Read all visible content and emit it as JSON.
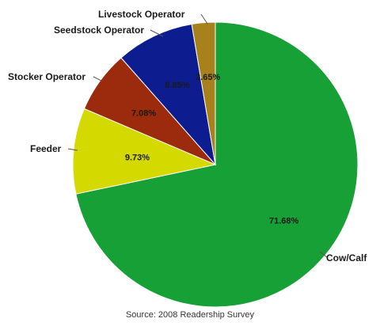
{
  "chart_data": {
    "type": "pie",
    "title": "",
    "slices": [
      {
        "label": "Cow/Calf",
        "value": 71.68,
        "value_label": "71.68%",
        "color": "#17a035"
      },
      {
        "label": "Feeder",
        "value": 9.73,
        "value_label": "9.73%",
        "color": "#d4d900"
      },
      {
        "label": "Stocker Operator",
        "value": 7.08,
        "value_label": "7.08%",
        "color": "#9c2a0c"
      },
      {
        "label": "Seedstock Operator",
        "value": 8.85,
        "value_label": "8.85%",
        "color": "#0d1d8f"
      },
      {
        "label": "Livestock Operator",
        "value": 2.65,
        "value_label": "2.65%",
        "color": "#a8801c"
      }
    ],
    "start_angle": "12 o'clock",
    "direction": "clockwise"
  },
  "source": "Source: 2008 Readership Survey"
}
